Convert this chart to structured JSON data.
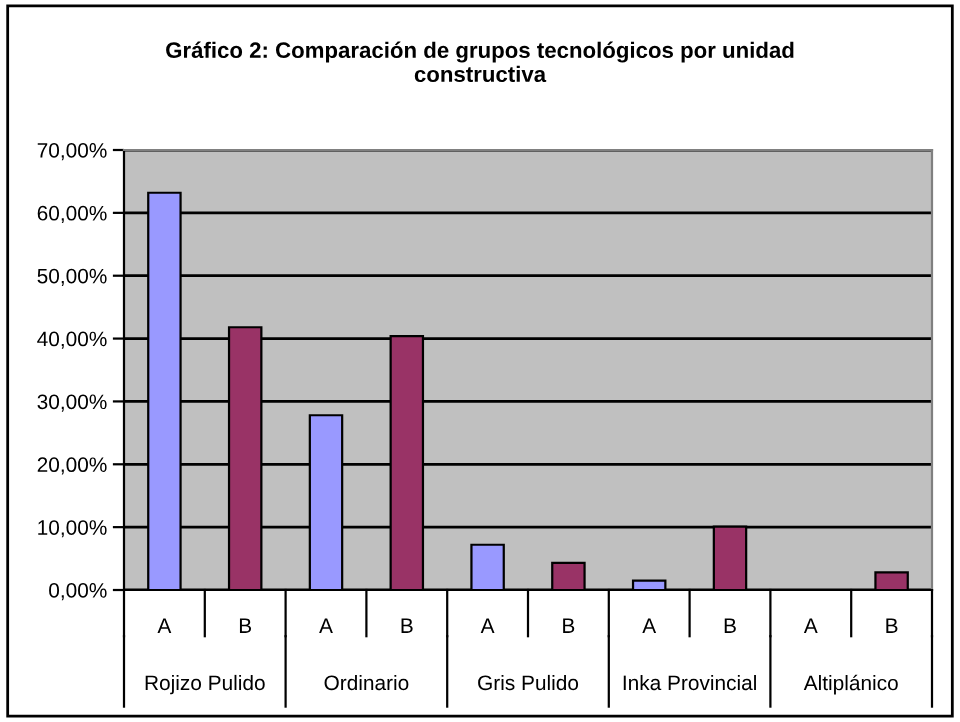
{
  "chart_data": {
    "type": "bar",
    "title": "Gráfico 2: Comparación de grupos tecnológicos por unidad\nconstructiva",
    "categories": [
      "A",
      "B",
      "A",
      "B",
      "A",
      "B",
      "A",
      "B",
      "A",
      "B"
    ],
    "values": [
      63.2,
      41.8,
      27.8,
      40.4,
      7.2,
      4.3,
      1.5,
      10.1,
      null,
      2.8
    ],
    "colors": [
      "#9999ff",
      "#993366",
      "#9999ff",
      "#993366",
      "#9999ff",
      "#993366",
      "#9999ff",
      "#993366",
      "#9999ff",
      "#993366"
    ],
    "annotations": [
      "Rojizo Pulido",
      "Ordinario",
      "Gris Pulido",
      "Inka Provincial",
      "Altiplánico"
    ],
    "ylim": [
      0,
      70
    ],
    "yticks": [
      {
        "value": 0,
        "label": "0,00%"
      },
      {
        "value": 10,
        "label": "10,00%"
      },
      {
        "value": 20,
        "label": "20,00%"
      },
      {
        "value": 30,
        "label": "30,00%"
      },
      {
        "value": 40,
        "label": "40,00%"
      },
      {
        "value": 50,
        "label": "50,00%"
      },
      {
        "value": 60,
        "label": "60,00%"
      },
      {
        "value": 70,
        "label": "70,00%"
      }
    ],
    "grid": "y",
    "legend": false
  }
}
